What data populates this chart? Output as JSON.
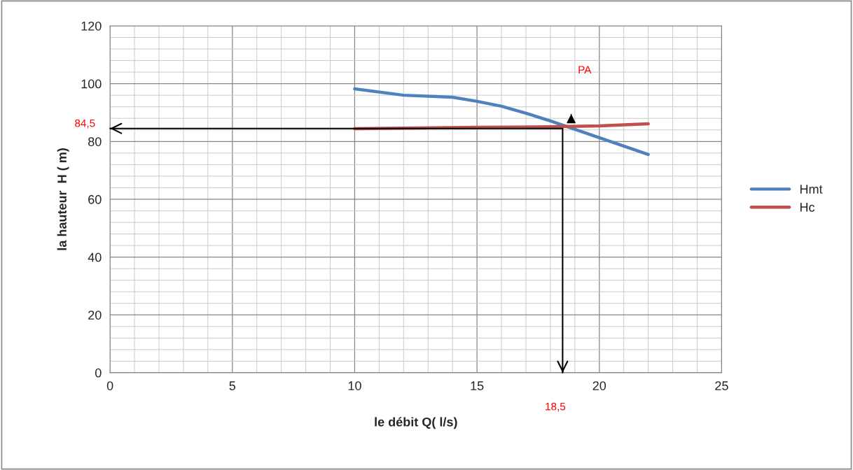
{
  "chart_data": {
    "type": "line",
    "xlabel": "le débit Q( l/s)",
    "ylabel": "la hauteur  H ( m)",
    "series": [
      {
        "name": "Hmt",
        "color": "#4f81bd",
        "x": [
          10,
          12,
          14,
          15,
          16,
          17,
          18,
          19,
          20,
          21,
          22
        ],
        "values": [
          98.2,
          96,
          95.3,
          93.9,
          92.2,
          89.8,
          87.1,
          84.2,
          81.3,
          78.4,
          75.5
        ]
      },
      {
        "name": "Hc",
        "color": "#c0504d",
        "x": [
          10,
          15,
          18,
          20,
          22
        ],
        "values": [
          84.4,
          84.9,
          85.1,
          85.4,
          86.1
        ]
      }
    ],
    "xlim": [
      0,
      25
    ],
    "xticks": [
      0,
      5,
      10,
      15,
      20,
      25
    ],
    "ylim": [
      0,
      120
    ],
    "yticks": [
      0,
      20,
      40,
      60,
      80,
      100,
      120
    ],
    "grid": true,
    "legend": "right",
    "marker": "none",
    "line_style": "solid",
    "ref_lines": [
      {
        "axis": "y",
        "value": 84.5,
        "label": "84,5",
        "color": "#000000"
      },
      {
        "axis": "x",
        "value": 18.5,
        "label": "18,5",
        "color": "#000000"
      }
    ],
    "annotations": [
      "PA"
    ]
  }
}
